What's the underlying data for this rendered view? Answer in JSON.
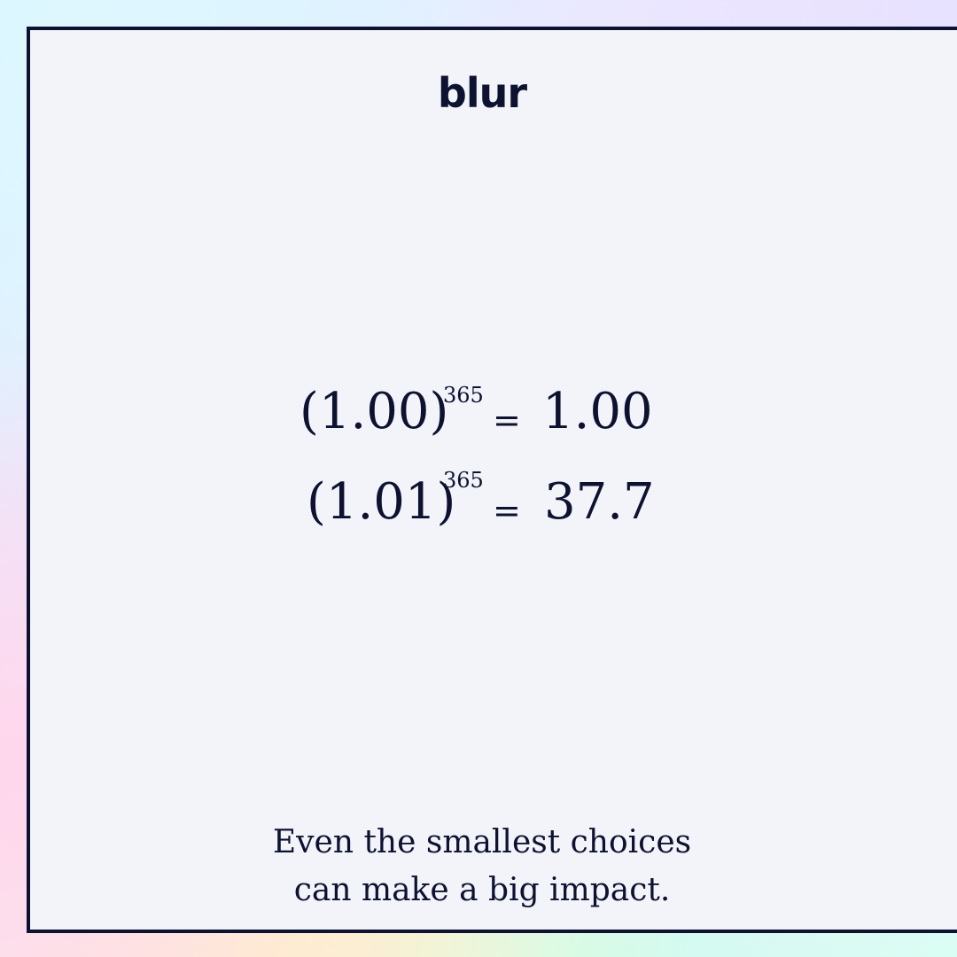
{
  "brand": {
    "logo_text": "blur"
  },
  "equations": [
    {
      "base": "(1.00)",
      "exponent": "365",
      "equals": "=",
      "result": "1.00"
    },
    {
      "base": "(1.01)",
      "exponent": "365",
      "equals": "=",
      "result": "37.7"
    }
  ],
  "tagline": {
    "line1": "Even the smallest choices",
    "line2": "can make a big impact."
  },
  "colors": {
    "ink": "#0d1230",
    "panel": "#f3f4fa"
  }
}
